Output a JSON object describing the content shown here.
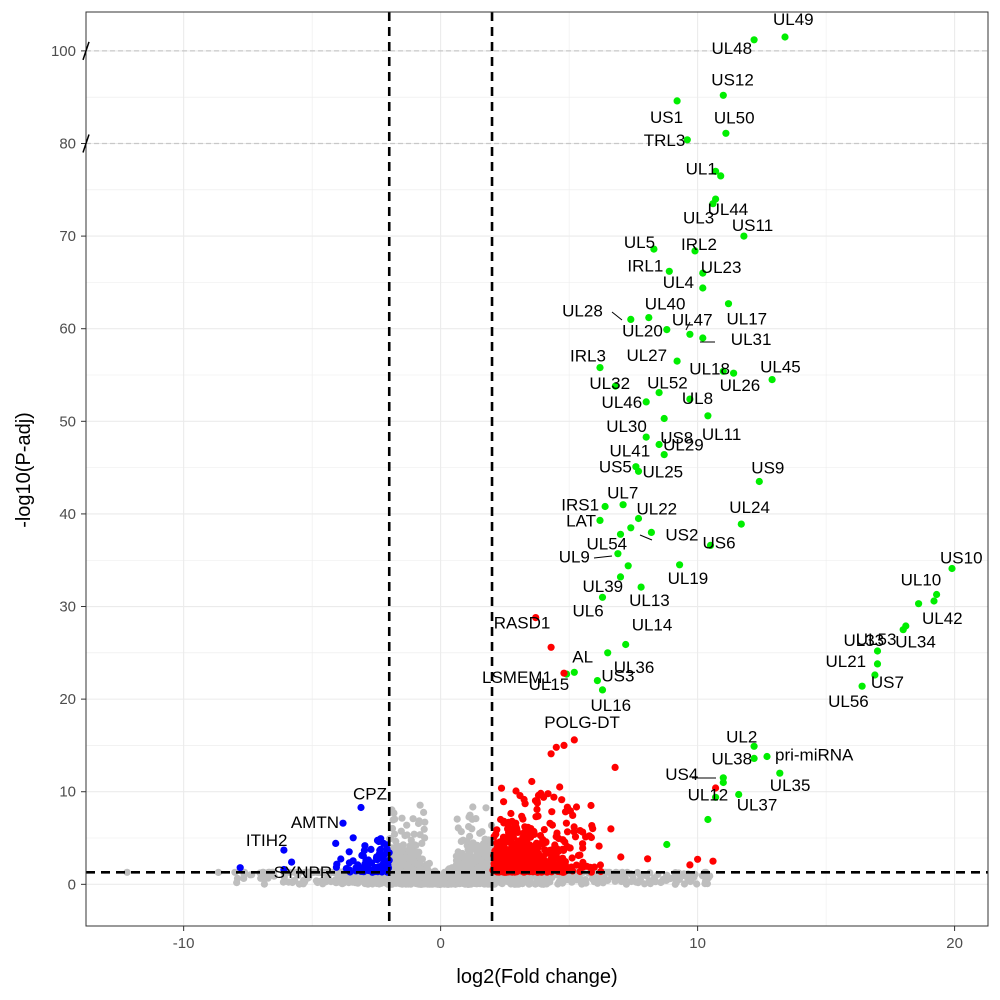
{
  "chart_data": {
    "type": "scatter",
    "title": "",
    "xlabel": "log2(Fold change)",
    "ylabel": "-log10(P-adj)",
    "xlim": [
      -13.8,
      21.3
    ],
    "ylim": [
      -4.5,
      94.2
    ],
    "x_ticks": [
      -10,
      0,
      10,
      20
    ],
    "x_tick_labels": [
      "-10",
      "0",
      "10",
      "20"
    ],
    "y_ticks": [
      0,
      10,
      20,
      30,
      40,
      50,
      60,
      70,
      80,
      100
    ],
    "y_tick_labels": [
      "0",
      "10",
      "20",
      "30",
      "40",
      "50",
      "60",
      "70",
      "80",
      "100"
    ],
    "y_ticks_plot_pos": [
      0,
      10,
      20,
      30,
      40,
      50,
      60,
      70,
      80,
      90
    ],
    "axis_break_note": "y-axis broken above 80; displayed 90 corresponds to label 100",
    "fc_thresholds": [
      -2,
      2
    ],
    "padj_threshold": 1.3,
    "grid": true,
    "colors": {
      "up_viral": "#00ee00",
      "up_host": "#ff0000",
      "down": "#0000ff",
      "ns": "#bebebe",
      "threshold": "#000000",
      "break_line": "#c8c8c8"
    },
    "series": [
      {
        "points": [
          {
            "label": "UL49",
            "x": 13.4,
            "y": 91.5
          },
          {
            "label": "UL48",
            "x": 12.2,
            "y": 91.2
          },
          {
            "label": "US12",
            "x": 11.0,
            "y": 85.2
          },
          {
            "label": "US1",
            "x": 9.2,
            "y": 84.6
          },
          {
            "label": "UL50",
            "x": 11.1,
            "y": 81.1
          },
          {
            "label": "TRL3",
            "x": 9.6,
            "y": 80.4
          },
          {
            "label": "UL1",
            "x": 10.7,
            "y": 77.0
          },
          {
            "label": "",
            "x": 10.9,
            "y": 76.5
          },
          {
            "label": "UL44",
            "x": 10.7,
            "y": 74.0
          },
          {
            "label": "UL3",
            "x": 10.6,
            "y": 73.5
          },
          {
            "label": "US11",
            "x": 11.8,
            "y": 70.0
          },
          {
            "label": "UL5",
            "x": 8.3,
            "y": 68.6
          },
          {
            "label": "IRL2",
            "x": 9.9,
            "y": 68.4
          },
          {
            "label": "IRL1",
            "x": 8.9,
            "y": 66.2
          },
          {
            "label": "UL23",
            "x": 10.2,
            "y": 66.0
          },
          {
            "label": "UL4",
            "x": 10.2,
            "y": 64.4
          },
          {
            "label": "UL17",
            "x": 11.2,
            "y": 62.7
          },
          {
            "label": "UL28",
            "x": 7.4,
            "y": 61.0
          },
          {
            "label": "UL40",
            "x": 8.1,
            "y": 61.2
          },
          {
            "label": "UL20",
            "x": 8.8,
            "y": 59.9
          },
          {
            "label": "UL47",
            "x": 9.7,
            "y": 59.4
          },
          {
            "label": "UL31",
            "x": 10.2,
            "y": 59.0
          },
          {
            "label": "UL27",
            "x": 9.2,
            "y": 56.5
          },
          {
            "label": "IRL3",
            "x": 6.2,
            "y": 55.8
          },
          {
            "label": "UL18",
            "x": 11.0,
            "y": 55.4
          },
          {
            "label": "UL26",
            "x": 11.4,
            "y": 55.2
          },
          {
            "label": "UL45",
            "x": 12.9,
            "y": 54.5
          },
          {
            "label": "UL32",
            "x": 6.8,
            "y": 53.8
          },
          {
            "label": "UL52",
            "x": 8.5,
            "y": 53.1
          },
          {
            "label": "UL46",
            "x": 8.0,
            "y": 52.1
          },
          {
            "label": "UL8",
            "x": 9.7,
            "y": 52.4
          },
          {
            "label": "UL11",
            "x": 10.4,
            "y": 50.6
          },
          {
            "label": "US8",
            "x": 8.7,
            "y": 50.3
          },
          {
            "label": "UL30",
            "x": 8.0,
            "y": 48.3
          },
          {
            "label": "UL29",
            "x": 8.5,
            "y": 47.5
          },
          {
            "label": "UL41",
            "x": 8.7,
            "y": 46.4
          },
          {
            "label": "US5",
            "x": 7.6,
            "y": 45.1
          },
          {
            "label": "UL25",
            "x": 7.7,
            "y": 44.6
          },
          {
            "label": "US9",
            "x": 12.4,
            "y": 43.5
          },
          {
            "label": "UL7",
            "x": 7.1,
            "y": 41.0
          },
          {
            "label": "IRS1",
            "x": 6.4,
            "y": 40.8
          },
          {
            "label": "UL24",
            "x": 11.7,
            "y": 38.9
          },
          {
            "label": "UL22",
            "x": 7.7,
            "y": 39.5
          },
          {
            "label": "LAT",
            "x": 6.2,
            "y": 39.3
          },
          {
            "label": "",
            "x": 7.4,
            "y": 38.5
          },
          {
            "label": "US2",
            "x": 8.2,
            "y": 38.0
          },
          {
            "label": "US6",
            "x": 10.5,
            "y": 36.6
          },
          {
            "label": "UL54",
            "x": 7.0,
            "y": 37.8
          },
          {
            "label": "UL9",
            "x": 6.9,
            "y": 35.7
          },
          {
            "label": "",
            "x": 7.3,
            "y": 34.4
          },
          {
            "label": "UL19",
            "x": 9.3,
            "y": 34.5
          },
          {
            "label": "US10",
            "x": 19.9,
            "y": 34.1
          },
          {
            "label": "UL39",
            "x": 7.0,
            "y": 33.2
          },
          {
            "label": "UL13",
            "x": 7.8,
            "y": 32.1
          },
          {
            "label": "UL6",
            "x": 6.3,
            "y": 31.0
          },
          {
            "label": "UL10",
            "x": 19.3,
            "y": 31.3
          },
          {
            "label": "UL42",
            "x": 19.2,
            "y": 30.6
          },
          {
            "label": "",
            "x": 18.6,
            "y": 30.3
          },
          {
            "label": "UL53",
            "x": 18.1,
            "y": 27.9
          },
          {
            "label": "UL34",
            "x": 18.0,
            "y": 27.5
          },
          {
            "label": "UL14",
            "x": 7.2,
            "y": 25.9
          },
          {
            "label": "UL33",
            "x": 17.0,
            "y": 25.2
          },
          {
            "label": "UL36",
            "x": 6.5,
            "y": 25.0
          },
          {
            "label": "UL21",
            "x": 17.0,
            "y": 23.8
          },
          {
            "label": "US7",
            "x": 16.9,
            "y": 22.6
          },
          {
            "label": "AL",
            "x": 5.2,
            "y": 22.9
          },
          {
            "label": "UL15",
            "x": 4.9,
            "y": 22.7
          },
          {
            "label": "US3",
            "x": 6.1,
            "y": 22.0
          },
          {
            "label": "UL16",
            "x": 6.3,
            "y": 21.0
          },
          {
            "label": "UL56",
            "x": 16.4,
            "y": 21.4
          },
          {
            "label": "UL2",
            "x": 12.2,
            "y": 14.9
          },
          {
            "label": "pri-miRNA",
            "x": 12.7,
            "y": 13.8
          },
          {
            "label": "UL38",
            "x": 12.2,
            "y": 13.6
          },
          {
            "label": "UL35",
            "x": 13.2,
            "y": 12.0
          },
          {
            "label": "US4",
            "x": 11.0,
            "y": 11.5
          },
          {
            "label": "",
            "x": 11.0,
            "y": 11.0
          },
          {
            "label": "UL37",
            "x": 11.6,
            "y": 9.7
          },
          {
            "label": "UL12",
            "x": 10.7,
            "y": 9.4
          },
          {
            "label": "",
            "x": 10.4,
            "y": 7.0
          },
          {
            "label": "",
            "x": 8.8,
            "y": 4.3
          }
        ]
      },
      {
        "points": [
          {
            "label": "RASD1",
            "x": 3.7,
            "y": 28.8
          },
          {
            "label": "",
            "x": 4.3,
            "y": 25.6
          },
          {
            "label": "LSMEM1",
            "x": 4.8,
            "y": 22.8
          },
          {
            "label": "POLG-DT",
            "x": 5.2,
            "y": 15.6
          },
          {
            "label": "",
            "x": 4.8,
            "y": 15.0
          },
          {
            "label": "",
            "x": 4.5,
            "y": 14.8
          },
          {
            "label": "",
            "x": 4.3,
            "y": 14.1
          },
          {
            "label": "",
            "x": 10.7,
            "y": 10.4
          },
          {
            "label": "",
            "x": 10.0,
            "y": 2.7
          },
          {
            "label": "",
            "x": 10.6,
            "y": 2.5
          },
          {
            "label": "",
            "x": 9.7,
            "y": 2.1
          }
        ]
      },
      {
        "points": [
          {
            "label": "CPZ",
            "x": -3.1,
            "y": 8.3
          },
          {
            "label": "AMTN",
            "x": -3.8,
            "y": 6.6
          },
          {
            "label": "ITIH2",
            "x": -6.1,
            "y": 3.7
          },
          {
            "label": "SYNPR",
            "x": -5.8,
            "y": 2.4
          },
          {
            "label": "",
            "x": -7.8,
            "y": 1.8
          },
          {
            "label": "",
            "x": -6.1,
            "y": 1.6
          }
        ]
      },
      {
        "points": [
          {
            "label": "",
            "x": -12.2,
            "y": 1.3
          }
        ]
      }
    ]
  }
}
